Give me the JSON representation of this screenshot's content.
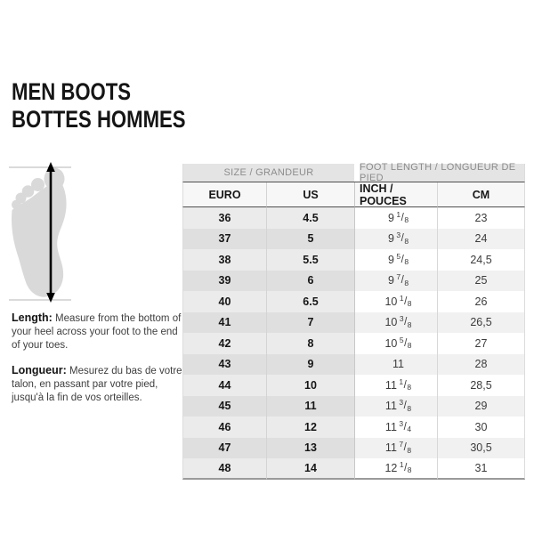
{
  "title": {
    "line1": "MEN BOOTS",
    "line2": "BOTTES HOMMES"
  },
  "diagram": {
    "label": "foot-length-measurement",
    "foot_color": "#d9d9d9",
    "arrow_color": "#000000",
    "guide_line_color": "#b5b5b5"
  },
  "instructions": {
    "length_label": "Length:",
    "length_text": " Measure from the bottom of your heel across your foot to the end of your toes.",
    "longueur_label": "Longueur:",
    "longueur_text": " Mesurez du bas de votre talon, en passant par votre pied, jusqu'à la fin de vos orteilles."
  },
  "table": {
    "group_headers": [
      "SIZE / GRANDEUR",
      "FOOT LENGTH / LONGUEUR DE PIED"
    ],
    "column_headers": [
      "EURO",
      "US",
      "INCH / POUCES",
      "CM"
    ],
    "rows": [
      {
        "euro": "36",
        "us": "4.5",
        "inch_whole": "9",
        "inch_num": "1",
        "inch_den": "8",
        "cm": "23"
      },
      {
        "euro": "37",
        "us": "5",
        "inch_whole": "9",
        "inch_num": "3",
        "inch_den": "8",
        "cm": "24"
      },
      {
        "euro": "38",
        "us": "5.5",
        "inch_whole": "9",
        "inch_num": "5",
        "inch_den": "8",
        "cm": "24,5"
      },
      {
        "euro": "39",
        "us": "6",
        "inch_whole": "9",
        "inch_num": "7",
        "inch_den": "8",
        "cm": "25"
      },
      {
        "euro": "40",
        "us": "6.5",
        "inch_whole": "10",
        "inch_num": "1",
        "inch_den": "8",
        "cm": "26"
      },
      {
        "euro": "41",
        "us": "7",
        "inch_whole": "10",
        "inch_num": "3",
        "inch_den": "8",
        "cm": "26,5"
      },
      {
        "euro": "42",
        "us": "8",
        "inch_whole": "10",
        "inch_num": "5",
        "inch_den": "8",
        "cm": "27"
      },
      {
        "euro": "43",
        "us": "9",
        "inch_whole": "11",
        "inch_num": "",
        "inch_den": "",
        "cm": "28"
      },
      {
        "euro": "44",
        "us": "10",
        "inch_whole": "11",
        "inch_num": "1",
        "inch_den": "8",
        "cm": "28,5"
      },
      {
        "euro": "45",
        "us": "11",
        "inch_whole": "11",
        "inch_num": "3",
        "inch_den": "8",
        "cm": "29"
      },
      {
        "euro": "46",
        "us": "12",
        "inch_whole": "11",
        "inch_num": "3",
        "inch_den": "4",
        "cm": "30"
      },
      {
        "euro": "47",
        "us": "13",
        "inch_whole": "11",
        "inch_num": "7",
        "inch_den": "8",
        "cm": "30,5"
      },
      {
        "euro": "48",
        "us": "14",
        "inch_whole": "12",
        "inch_num": "1",
        "inch_den": "8",
        "cm": "31"
      }
    ]
  },
  "colors": {
    "group_header_bg": "#e4e4e4",
    "group_header_text": "#8c8c8c",
    "column_header_bg": "#f7f7f7",
    "dark_rule": "#4f4f4f",
    "size_col_row_light": "#ebebeb",
    "size_col_row_dark": "#dfdfdf",
    "measure_col_row_light": "#ffffff",
    "measure_col_row_dark": "#f1f1f1",
    "bottom_rule": "#9a9a9a"
  }
}
